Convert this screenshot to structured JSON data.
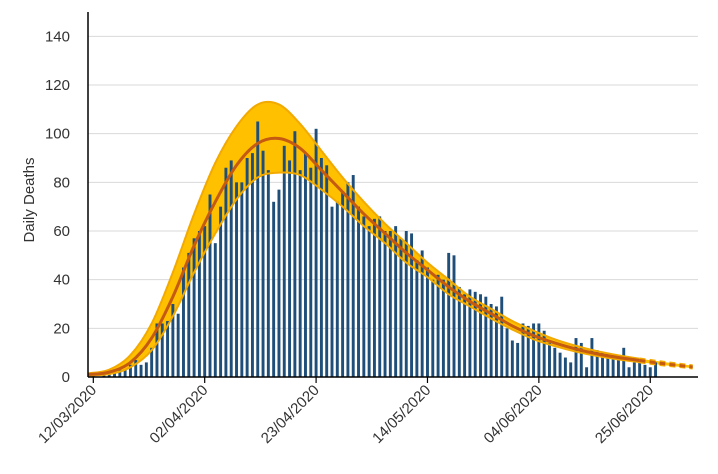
{
  "colors": {
    "bar": "#1F4E79",
    "band": "#FFC000",
    "band_edge": "#F2A900",
    "fit": "#C55A11",
    "grid": "#D9D9D9",
    "axis": "#000000"
  },
  "chart_data": {
    "type": "bar",
    "title": "",
    "xlabel": "",
    "ylabel": "Daily Deaths",
    "ylim": [
      0,
      150
    ],
    "yticks": [
      0,
      20,
      40,
      60,
      80,
      100,
      120,
      140
    ],
    "xlim": [
      "2020-03-11",
      "2020-07-04"
    ],
    "xtick_dates": [
      "2020-03-12",
      "2020-04-02",
      "2020-04-23",
      "2020-05-14",
      "2020-06-04",
      "2020-06-25"
    ],
    "xtick_labels": [
      "12/03/2020",
      "02/04/2020",
      "23/04/2020",
      "14/05/2020",
      "04/06/2020",
      "25/06/2020"
    ],
    "grid": true,
    "legend": "none",
    "bars_start_date": "2020-03-12",
    "bars": [
      1,
      0,
      1,
      1,
      2,
      3,
      3,
      5,
      7,
      5,
      6,
      12,
      22,
      22,
      23,
      30,
      26,
      45,
      51,
      57,
      60,
      62,
      75,
      55,
      70,
      86,
      89,
      80,
      80,
      90,
      92,
      105,
      93,
      85,
      72,
      77,
      95,
      89,
      101,
      85,
      92,
      86,
      102,
      90,
      87,
      70,
      72,
      76,
      80,
      83,
      70,
      66,
      62,
      65,
      66,
      60,
      60,
      62,
      57,
      60,
      59,
      48,
      52,
      45,
      40,
      42,
      40,
      51,
      50,
      37,
      34,
      36,
      35,
      34,
      33,
      30,
      29,
      33,
      20,
      15,
      14,
      22,
      21,
      22,
      22,
      19,
      14,
      12,
      10,
      8,
      6,
      16,
      14,
      4,
      16,
      11,
      10,
      10,
      9,
      7,
      12,
      4,
      6,
      6,
      5,
      4,
      6
    ],
    "series": [
      {
        "name": "",
        "style": "fit",
        "x": [
          "2020-03-11",
          "2020-03-15",
          "2020-03-19",
          "2020-03-23",
          "2020-03-27",
          "2020-03-31",
          "2020-04-04",
          "2020-04-08",
          "2020-04-12",
          "2020-04-16",
          "2020-04-20",
          "2020-04-24",
          "2020-04-28",
          "2020-05-02",
          "2020-05-06",
          "2020-05-10",
          "2020-05-14",
          "2020-05-18",
          "2020-05-22",
          "2020-05-26",
          "2020-05-30",
          "2020-06-03",
          "2020-06-07",
          "2020-06-11",
          "2020-06-15",
          "2020-06-19",
          "2020-06-23",
          "2020-06-27",
          "2020-07-01",
          "2020-07-03"
        ],
        "y": [
          1,
          2,
          6,
          16,
          33,
          54,
          72,
          87,
          96,
          98,
          94,
          85,
          76,
          67,
          59,
          51,
          44,
          37,
          31,
          26,
          21,
          17,
          14,
          11.5,
          9.5,
          8,
          6.8,
          5.6,
          4.6,
          4.1
        ]
      },
      {
        "name": "",
        "style": "band-upper",
        "x": [
          "2020-03-11",
          "2020-03-15",
          "2020-03-19",
          "2020-03-23",
          "2020-03-27",
          "2020-03-31",
          "2020-04-04",
          "2020-04-08",
          "2020-04-12",
          "2020-04-16",
          "2020-04-20",
          "2020-04-24",
          "2020-04-28",
          "2020-05-02",
          "2020-05-06",
          "2020-05-10",
          "2020-05-14",
          "2020-05-18",
          "2020-05-22",
          "2020-05-26",
          "2020-05-30",
          "2020-06-03",
          "2020-06-07",
          "2020-06-11",
          "2020-06-15",
          "2020-06-19",
          "2020-06-23",
          "2020-06-27",
          "2020-07-01",
          "2020-07-03"
        ],
        "y": [
          1.5,
          3,
          9,
          22,
          43,
          67,
          88,
          103,
          112,
          112,
          104,
          93,
          82,
          72,
          63,
          55,
          47,
          40,
          33,
          28,
          23,
          19,
          15.5,
          12.8,
          10.6,
          8.9,
          7.5,
          6.3,
          5.2,
          4.7
        ]
      },
      {
        "name": "",
        "style": "band-lower",
        "x": [
          "2020-03-11",
          "2020-03-15",
          "2020-03-19",
          "2020-03-23",
          "2020-03-27",
          "2020-03-31",
          "2020-04-04",
          "2020-04-08",
          "2020-04-12",
          "2020-04-16",
          "2020-04-20",
          "2020-04-24",
          "2020-04-28",
          "2020-05-02",
          "2020-05-06",
          "2020-05-10",
          "2020-05-14",
          "2020-05-18",
          "2020-05-22",
          "2020-05-26",
          "2020-05-30",
          "2020-06-03",
          "2020-06-07",
          "2020-06-11",
          "2020-06-15",
          "2020-06-19",
          "2020-06-23",
          "2020-06-27",
          "2020-07-01",
          "2020-07-03"
        ],
        "y": [
          0.6,
          1.2,
          4,
          11,
          25,
          43,
          59,
          73,
          82,
          84,
          83,
          77,
          70,
          62,
          55,
          47,
          41,
          34,
          29,
          24,
          19.5,
          15.5,
          12.7,
          10.4,
          8.6,
          7.2,
          6.1,
          5,
          4.1,
          3.6
        ]
      }
    ],
    "projection_start_date": "2020-06-23"
  }
}
